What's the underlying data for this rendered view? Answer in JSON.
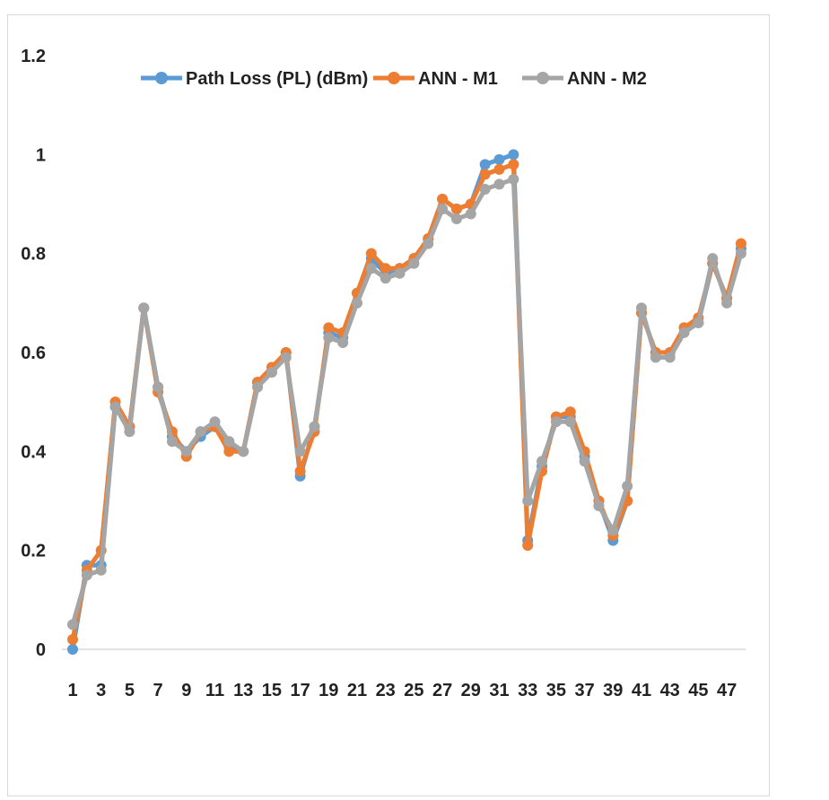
{
  "chart_data": {
    "type": "line",
    "title": "",
    "xlabel": "",
    "ylabel": "",
    "ylim": [
      0,
      1.2
    ],
    "y_ticks": [
      "0",
      "0.2",
      "0.4",
      "0.6",
      "0.8",
      "1",
      "1.2"
    ],
    "x_tick_labels": [
      "1",
      "3",
      "5",
      "7",
      "9",
      "11",
      "13",
      "15",
      "17",
      "19",
      "21",
      "23",
      "25",
      "27",
      "29",
      "31",
      "33",
      "35",
      "37",
      "39",
      "41",
      "43",
      "45",
      "47"
    ],
    "x": [
      1,
      2,
      3,
      4,
      5,
      6,
      7,
      8,
      9,
      10,
      11,
      12,
      13,
      14,
      15,
      16,
      17,
      18,
      19,
      20,
      21,
      22,
      23,
      24,
      25,
      26,
      27,
      28,
      29,
      30,
      31,
      32,
      33,
      34,
      35,
      36,
      37,
      38,
      39,
      40,
      41,
      42,
      43,
      44,
      45,
      46,
      47,
      48
    ],
    "grid": false,
    "legend_position": "top",
    "series": [
      {
        "name": "Path Loss (PL) (dBm)",
        "color": "#5b9bd5",
        "values": [
          0,
          0.17,
          0.17,
          0.49,
          0.45,
          0.69,
          0.53,
          0.43,
          0.4,
          0.43,
          0.45,
          0.41,
          0.4,
          0.54,
          0.56,
          0.6,
          0.35,
          0.45,
          0.64,
          0.63,
          0.72,
          0.79,
          0.76,
          0.77,
          0.79,
          0.83,
          0.91,
          0.89,
          0.9,
          0.98,
          0.99,
          1.0,
          0.22,
          0.37,
          0.47,
          0.47,
          0.39,
          0.3,
          0.22,
          0.3,
          0.68,
          0.6,
          0.6,
          0.65,
          0.66,
          0.78,
          0.71,
          0.81
        ]
      },
      {
        "name": "ANN - M1",
        "color": "#ed7d31",
        "values": [
          0.02,
          0.16,
          0.2,
          0.5,
          0.45,
          0.69,
          0.52,
          0.44,
          0.39,
          0.44,
          0.45,
          0.4,
          0.4,
          0.54,
          0.57,
          0.6,
          0.36,
          0.44,
          0.65,
          0.64,
          0.72,
          0.8,
          0.77,
          0.77,
          0.79,
          0.83,
          0.91,
          0.89,
          0.9,
          0.96,
          0.97,
          0.98,
          0.21,
          0.36,
          0.47,
          0.48,
          0.4,
          0.3,
          0.23,
          0.3,
          0.68,
          0.6,
          0.6,
          0.65,
          0.67,
          0.78,
          0.71,
          0.82
        ]
      },
      {
        "name": "ANN - M2",
        "color": "#a5a5a5",
        "values": [
          0.05,
          0.15,
          0.16,
          0.49,
          0.44,
          0.69,
          0.53,
          0.42,
          0.4,
          0.44,
          0.46,
          0.42,
          0.4,
          0.53,
          0.56,
          0.59,
          0.4,
          0.45,
          0.63,
          0.62,
          0.7,
          0.77,
          0.75,
          0.76,
          0.78,
          0.82,
          0.89,
          0.87,
          0.88,
          0.93,
          0.94,
          0.95,
          0.3,
          0.38,
          0.46,
          0.46,
          0.38,
          0.29,
          0.24,
          0.33,
          0.69,
          0.59,
          0.59,
          0.64,
          0.66,
          0.79,
          0.7,
          0.8
        ]
      }
    ]
  }
}
